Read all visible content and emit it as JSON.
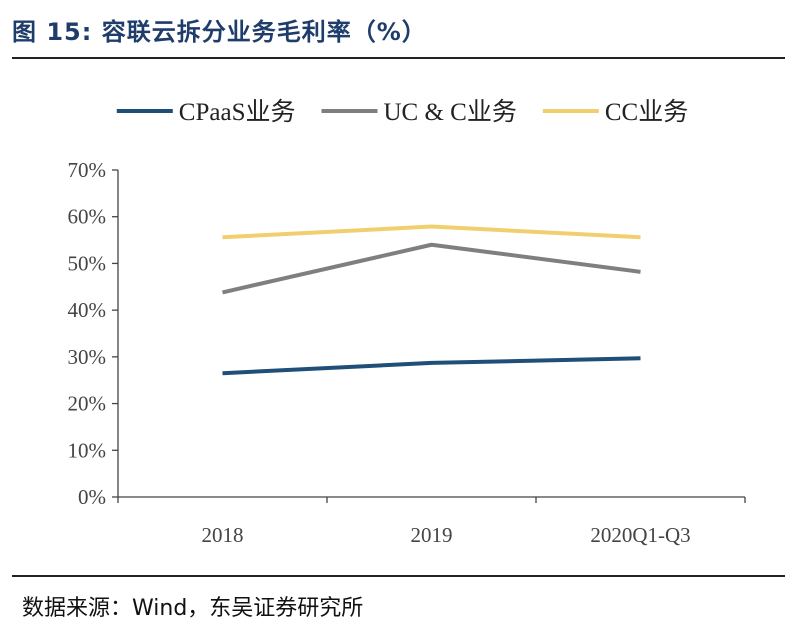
{
  "title": "图 15:  容联云拆分业务毛利率（%）",
  "source": "数据来源：Wind，东吴证券研究所",
  "colors": {
    "cpaas": "#1f4e79",
    "uc": "#7f7f7f",
    "cc": "#f2cf6e",
    "axis": "#444444",
    "rule": "#222222"
  },
  "chart_data": {
    "type": "line",
    "title": "容联云拆分业务毛利率（%）",
    "categories": [
      "2018",
      "2019",
      "2020Q1-Q3"
    ],
    "ylim": [
      0,
      70
    ],
    "yticks": [
      0,
      10,
      20,
      30,
      40,
      50,
      60,
      70
    ],
    "ytick_labels": [
      "0%",
      "10%",
      "20%",
      "30%",
      "40%",
      "50%",
      "60%",
      "70%"
    ],
    "xlabel": "",
    "ylabel": "",
    "grid": false,
    "legend_position": "top",
    "series": [
      {
        "name": "CPaaS业务",
        "color": "#1f4e79",
        "values": [
          26.5,
          28.7,
          29.7
        ]
      },
      {
        "name": "UC & C业务",
        "color": "#7f7f7f",
        "values": [
          43.8,
          54.0,
          48.2
        ]
      },
      {
        "name": "CC业务",
        "color": "#f2cf6e",
        "values": [
          55.6,
          57.9,
          55.6
        ]
      }
    ]
  }
}
